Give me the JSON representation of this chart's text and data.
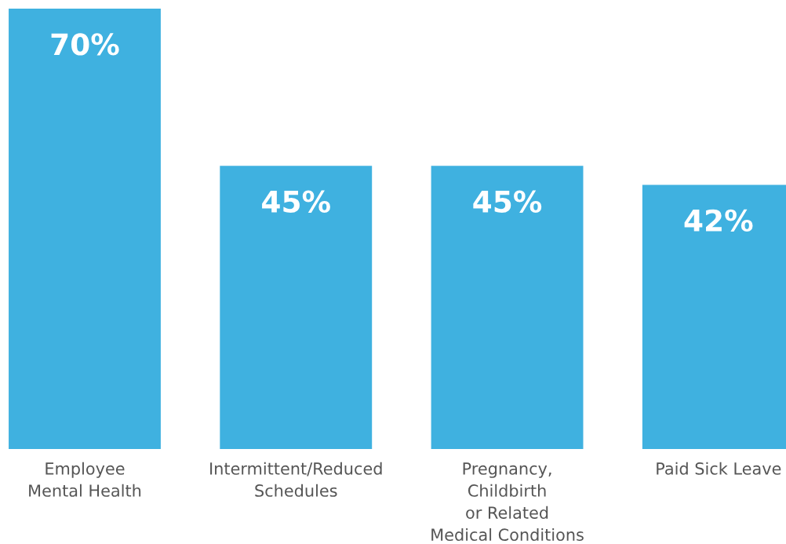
{
  "chart_data": {
    "type": "bar",
    "categories": [
      "Employee\nMental Health",
      "Intermittent/Reduced\nSchedules",
      "Pregnancy,\nChildbirth\nor Related\nMedical Conditions",
      "Paid Sick Leave"
    ],
    "values": [
      70,
      45,
      45,
      42
    ],
    "value_labels": [
      "70%",
      "45%",
      "45%",
      "42%"
    ],
    "color": "#3fb1e0",
    "ylim": [
      0,
      70
    ],
    "tick_labels": "x",
    "grid": false,
    "legend": false
  }
}
